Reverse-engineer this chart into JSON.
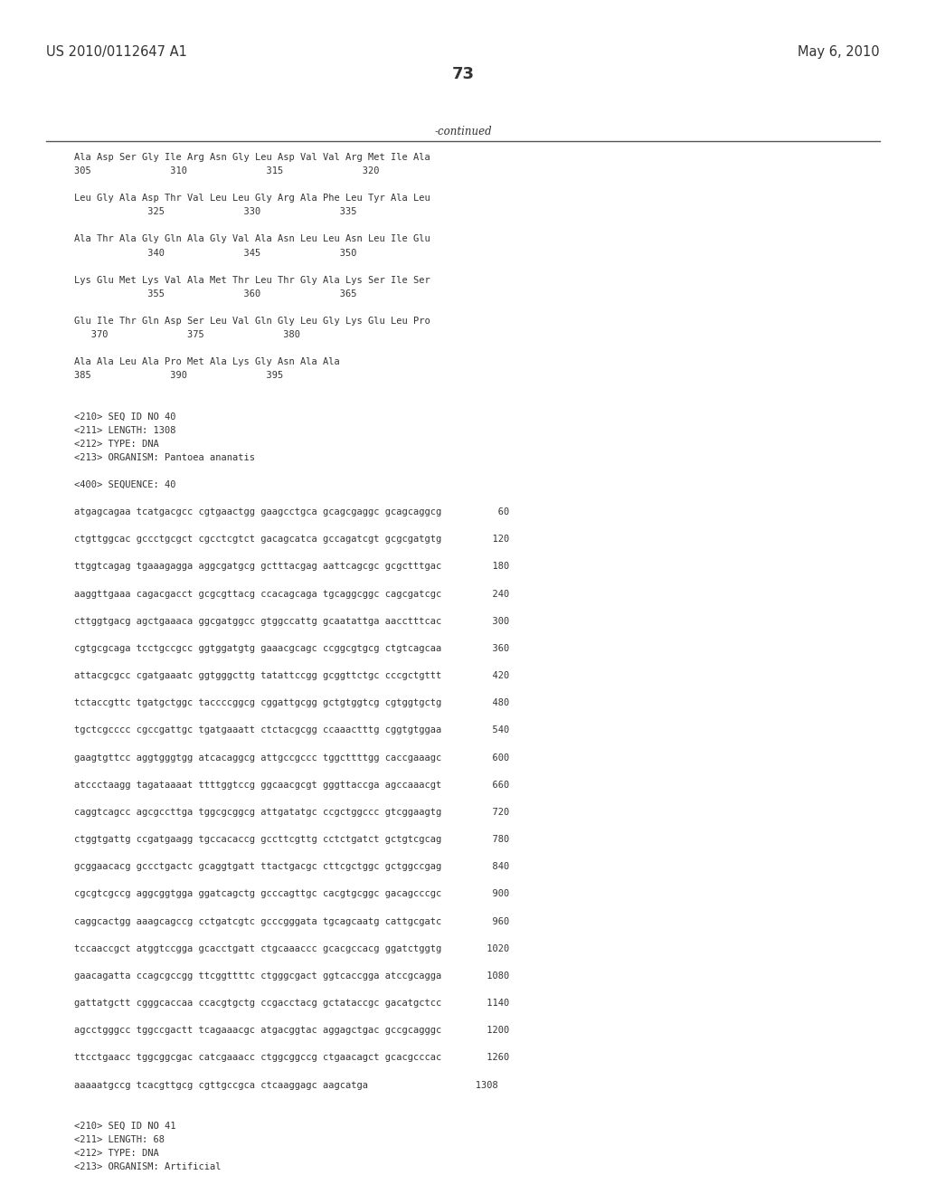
{
  "header_left": "US 2010/0112647 A1",
  "header_right": "May 6, 2010",
  "page_number": "73",
  "continued_label": "-continued",
  "background_color": "#ffffff",
  "text_color": "#333333",
  "font_size_header": 10.5,
  "font_size_body": 8.5,
  "font_size_page": 13,
  "content_lines": [
    {
      "text": "Ala Asp Ser Gly Ile Arg Asn Gly Leu Asp Val Val Arg Met Ile Ala",
      "indent": 0.08,
      "type": "seq"
    },
    {
      "text": "305              310              315              320",
      "indent": 0.08,
      "type": "num"
    },
    {
      "text": "",
      "indent": 0,
      "type": "blank"
    },
    {
      "text": "Leu Gly Ala Asp Thr Val Leu Leu Gly Arg Ala Phe Leu Tyr Ala Leu",
      "indent": 0.08,
      "type": "seq"
    },
    {
      "text": "             325              330              335",
      "indent": 0.08,
      "type": "num"
    },
    {
      "text": "",
      "indent": 0,
      "type": "blank"
    },
    {
      "text": "Ala Thr Ala Gly Gln Ala Gly Val Ala Asn Leu Leu Asn Leu Ile Glu",
      "indent": 0.08,
      "type": "seq"
    },
    {
      "text": "             340              345              350",
      "indent": 0.08,
      "type": "num"
    },
    {
      "text": "",
      "indent": 0,
      "type": "blank"
    },
    {
      "text": "Lys Glu Met Lys Val Ala Met Thr Leu Thr Gly Ala Lys Ser Ile Ser",
      "indent": 0.08,
      "type": "seq"
    },
    {
      "text": "             355              360              365",
      "indent": 0.08,
      "type": "num"
    },
    {
      "text": "",
      "indent": 0,
      "type": "blank"
    },
    {
      "text": "Glu Ile Thr Gln Asp Ser Leu Val Gln Gly Leu Gly Lys Glu Leu Pro",
      "indent": 0.08,
      "type": "seq"
    },
    {
      "text": "   370              375              380",
      "indent": 0.08,
      "type": "num"
    },
    {
      "text": "",
      "indent": 0,
      "type": "blank"
    },
    {
      "text": "Ala Ala Leu Ala Pro Met Ala Lys Gly Asn Ala Ala",
      "indent": 0.08,
      "type": "seq"
    },
    {
      "text": "385              390              395",
      "indent": 0.08,
      "type": "num"
    },
    {
      "text": "",
      "indent": 0,
      "type": "blank"
    },
    {
      "text": "",
      "indent": 0,
      "type": "blank"
    },
    {
      "text": "<210> SEQ ID NO 40",
      "indent": 0.08,
      "type": "meta"
    },
    {
      "text": "<211> LENGTH: 1308",
      "indent": 0.08,
      "type": "meta"
    },
    {
      "text": "<212> TYPE: DNA",
      "indent": 0.08,
      "type": "meta"
    },
    {
      "text": "<213> ORGANISM: Pantoea ananatis",
      "indent": 0.08,
      "type": "meta"
    },
    {
      "text": "",
      "indent": 0,
      "type": "blank"
    },
    {
      "text": "<400> SEQUENCE: 40",
      "indent": 0.08,
      "type": "meta"
    },
    {
      "text": "",
      "indent": 0,
      "type": "blank"
    },
    {
      "text": "atgagcagaa tcatgacgcc cgtgaactgg gaagcctgca gcagcgaggc gcagcaggcg          60",
      "indent": 0.08,
      "type": "dna"
    },
    {
      "text": "",
      "indent": 0,
      "type": "blank"
    },
    {
      "text": "ctgttggcac gccctgcgct cgcctcgtct gacagcatca gccagatcgt gcgcgatgtg         120",
      "indent": 0.08,
      "type": "dna"
    },
    {
      "text": "",
      "indent": 0,
      "type": "blank"
    },
    {
      "text": "ttggtcagag tgaaagagga aggcgatgcg gctttacgag aattcagcgc gcgctttgac         180",
      "indent": 0.08,
      "type": "dna"
    },
    {
      "text": "",
      "indent": 0,
      "type": "blank"
    },
    {
      "text": "aaggttgaaa cagacgacct gcgcgttacg ccacagcaga tgcaggcggc cagcgatcgc         240",
      "indent": 0.08,
      "type": "dna"
    },
    {
      "text": "",
      "indent": 0,
      "type": "blank"
    },
    {
      "text": "cttggtgacg agctgaaaca ggcgatggcc gtggccattg gcaatattga aacctttcac         300",
      "indent": 0.08,
      "type": "dna"
    },
    {
      "text": "",
      "indent": 0,
      "type": "blank"
    },
    {
      "text": "cgtgcgcaga tcctgccgcc ggtggatgtg gaaacgcagc ccggcgtgcg ctgtcagcaa         360",
      "indent": 0.08,
      "type": "dna"
    },
    {
      "text": "",
      "indent": 0,
      "type": "blank"
    },
    {
      "text": "attacgcgcc cgatgaaatc ggtgggcttg tatattccgg gcggttctgc cccgctgttt         420",
      "indent": 0.08,
      "type": "dna"
    },
    {
      "text": "",
      "indent": 0,
      "type": "blank"
    },
    {
      "text": "tctaccgttc tgatgctggc taccccggcg cggattgcgg gctgtggtcg cgtggtgctg         480",
      "indent": 0.08,
      "type": "dna"
    },
    {
      "text": "",
      "indent": 0,
      "type": "blank"
    },
    {
      "text": "tgctcgcccc cgccgattgc tgatgaaatt ctctacgcgg ccaaactttg cggtgtggaa         540",
      "indent": 0.08,
      "type": "dna"
    },
    {
      "text": "",
      "indent": 0,
      "type": "blank"
    },
    {
      "text": "gaagtgttcc aggtgggtgg atcacaggcg attgccgccc tggcttttgg caccgaaagc         600",
      "indent": 0.08,
      "type": "dna"
    },
    {
      "text": "",
      "indent": 0,
      "type": "blank"
    },
    {
      "text": "atccctaagg tagataaaat ttttggtccg ggcaacgcgt gggttaccga agccaaacgt         660",
      "indent": 0.08,
      "type": "dna"
    },
    {
      "text": "",
      "indent": 0,
      "type": "blank"
    },
    {
      "text": "caggtcagcc agcgccttga tggcgcggcg attgatatgc ccgctggccc gtcggaagtg         720",
      "indent": 0.08,
      "type": "dna"
    },
    {
      "text": "",
      "indent": 0,
      "type": "blank"
    },
    {
      "text": "ctggtgattg ccgatgaagg tgccacaccg gccttcgttg cctctgatct gctgtcgcag         780",
      "indent": 0.08,
      "type": "dna"
    },
    {
      "text": "",
      "indent": 0,
      "type": "blank"
    },
    {
      "text": "gcggaacacg gccctgactc gcaggtgatt ttactgacgc cttcgctggc gctggccgag         840",
      "indent": 0.08,
      "type": "dna"
    },
    {
      "text": "",
      "indent": 0,
      "type": "blank"
    },
    {
      "text": "cgcgtcgccg aggcggtgga ggatcagctg gcccagttgc cacgtgcggc gacagcccgc         900",
      "indent": 0.08,
      "type": "dna"
    },
    {
      "text": "",
      "indent": 0,
      "type": "blank"
    },
    {
      "text": "caggcactgg aaagcagccg cctgatcgtc gcccgggata tgcagcaatg cattgcgatc         960",
      "indent": 0.08,
      "type": "dna"
    },
    {
      "text": "",
      "indent": 0,
      "type": "blank"
    },
    {
      "text": "tccaaccgct atggtccgga gcacctgatt ctgcaaaccc gcacgccacg ggatctggtg        1020",
      "indent": 0.08,
      "type": "dna"
    },
    {
      "text": "",
      "indent": 0,
      "type": "blank"
    },
    {
      "text": "gaacagatta ccagcgccgg ttcggttttc ctgggcgact ggtcaccgga atccgcagga        1080",
      "indent": 0.08,
      "type": "dna"
    },
    {
      "text": "",
      "indent": 0,
      "type": "blank"
    },
    {
      "text": "gattatgctt cgggcaccaa ccacgtgctg ccgacctacg gctataccgc gacatgctcc        1140",
      "indent": 0.08,
      "type": "dna"
    },
    {
      "text": "",
      "indent": 0,
      "type": "blank"
    },
    {
      "text": "agcctgggcc tggccgactt tcagaaacgc atgacggtac aggagctgac gccgcagggc        1200",
      "indent": 0.08,
      "type": "dna"
    },
    {
      "text": "",
      "indent": 0,
      "type": "blank"
    },
    {
      "text": "ttcctgaacc tggcggcgac catcgaaacc ctggcggccg ctgaacagct gcacgcccac        1260",
      "indent": 0.08,
      "type": "dna"
    },
    {
      "text": "",
      "indent": 0,
      "type": "blank"
    },
    {
      "text": "aaaaatgccg tcacgttgcg cgttgccgca ctcaaggagc aagcatga                   1308",
      "indent": 0.08,
      "type": "dna"
    },
    {
      "text": "",
      "indent": 0,
      "type": "blank"
    },
    {
      "text": "",
      "indent": 0,
      "type": "blank"
    },
    {
      "text": "<210> SEQ ID NO 41",
      "indent": 0.08,
      "type": "meta"
    },
    {
      "text": "<211> LENGTH: 68",
      "indent": 0.08,
      "type": "meta"
    },
    {
      "text": "<212> TYPE: DNA",
      "indent": 0.08,
      "type": "meta"
    },
    {
      "text": "<213> ORGANISM: Artificial",
      "indent": 0.08,
      "type": "meta"
    }
  ]
}
